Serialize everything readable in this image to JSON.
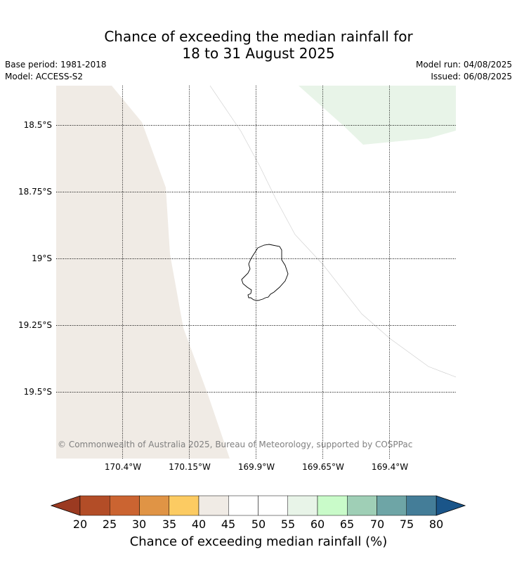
{
  "title_line1": "Chance of exceeding the median rainfall for",
  "title_line2": "18 to 31 August 2025",
  "base_period": "Base period: 1981-2018",
  "model": "Model: ACCESS-S2",
  "model_run": "Model run: 04/08/2025",
  "issued": "Issued: 06/08/2025",
  "latitude_labels": [
    "18.5°S",
    "18.75°S",
    "19°S",
    "19.25°S",
    "19.5°S"
  ],
  "longitude_labels": [
    "170.4°W",
    "170.15°W",
    "169.9°W",
    "169.65°W",
    "169.4°W"
  ],
  "copyright": "© Commonwealth of Australia 2025, Bureau of Meteorology, supported by COSPPac",
  "map_regions": [
    {
      "category": "40-45",
      "color": "#f0ebe5"
    },
    {
      "category": "45-55",
      "color": "#ffffff"
    },
    {
      "category": "55-60",
      "color": "#e8f4e8"
    }
  ],
  "colorbar": {
    "ticks": [
      "20",
      "25",
      "30",
      "35",
      "40",
      "45",
      "50",
      "55",
      "60",
      "65",
      "70",
      "75",
      "80"
    ],
    "colors": [
      "#b34d27",
      "#cb6431",
      "#e09445",
      "#fccb62",
      "#f0ebe5",
      "#ffffff",
      "#ffffff",
      "#e8f4e8",
      "#c9fbc9",
      "#9fcfb6",
      "#6ea5a6",
      "#447d98"
    ],
    "under_color": "#9b3a21",
    "over_color": "#1a5589",
    "label": "Chance of exceeding median rainfall (%)"
  }
}
